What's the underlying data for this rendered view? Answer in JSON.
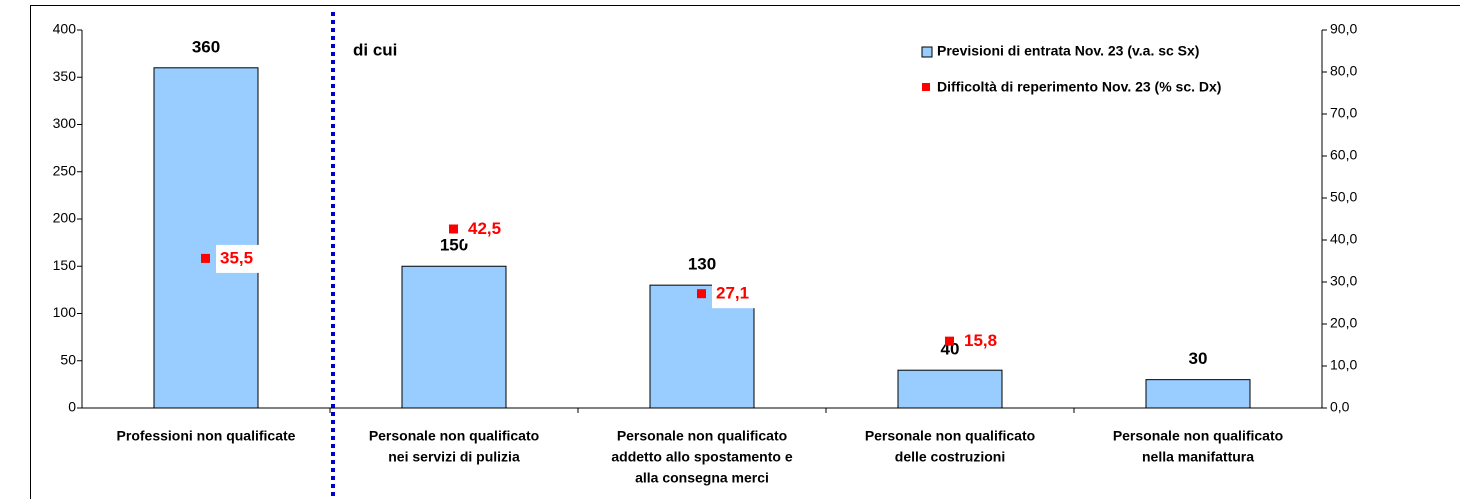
{
  "chart_data": {
    "type": "bar",
    "categories": [
      [
        "Professioni non qualificate"
      ],
      [
        "Personale non qualificato",
        "nei servizi di pulizia"
      ],
      [
        "Personale non qualificato",
        "addetto allo spostamento e",
        "alla consegna merci"
      ],
      [
        "Personale non qualificato",
        "delle costruzioni"
      ],
      [
        "Personale non qualificato",
        "nella manifattura"
      ]
    ],
    "series": [
      {
        "name": "Previsioni di entrata Nov. 23 (v.a. sc Sx)",
        "color": "#99ccff",
        "values": [
          360,
          150,
          130,
          40,
          30
        ]
      },
      {
        "name": "Difficoltà di reperimento Nov. 23 (% sc. Dx)",
        "color": "#ff0000",
        "axis": "y2",
        "values": [
          35.5,
          42.5,
          27.1,
          15.8,
          null
        ],
        "value_labels": [
          "35,5",
          "42,5",
          "27,1",
          "15,8",
          null
        ]
      }
    ],
    "annotation": "di cui",
    "ylim": [
      0,
      400
    ],
    "yticks": [
      0,
      50,
      100,
      150,
      200,
      250,
      300,
      350,
      400
    ],
    "y2lim": [
      0,
      90
    ],
    "y2ticks": [
      {
        "value": 0,
        "label": "0,0"
      },
      {
        "value": 10,
        "label": "10,0"
      },
      {
        "value": 20,
        "label": "20,0"
      },
      {
        "value": 30,
        "label": "30,0"
      },
      {
        "value": 40,
        "label": "40,0"
      },
      {
        "value": 50,
        "label": "50,0"
      },
      {
        "value": 60,
        "label": "60,0"
      },
      {
        "value": 70,
        "label": "70,0"
      },
      {
        "value": 80,
        "label": "80,0"
      },
      {
        "value": 90,
        "label": "90,0"
      }
    ],
    "legend": "top-right"
  }
}
